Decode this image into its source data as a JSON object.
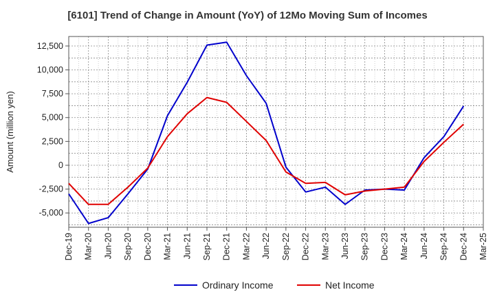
{
  "chart_data": {
    "type": "line",
    "title": "[6101]  Trend of Change in Amount (YoY) of 12Mo Moving Sum of Incomes",
    "ylabel": "Amount (million yen)",
    "xlabel": "",
    "ylim": [
      -6500,
      13500
    ],
    "yticks": [
      -5000,
      -2500,
      0,
      2500,
      5000,
      7500,
      10000,
      12500
    ],
    "ytick_labels": [
      "-5,000",
      "-2,500",
      "0",
      "2,500",
      "5,000",
      "7,500",
      "10,000",
      "12,500"
    ],
    "categories": [
      "Dec-19",
      "Mar-20",
      "Jun-20",
      "Sep-20",
      "Dec-20",
      "Mar-21",
      "Jun-21",
      "Sep-21",
      "Dec-21",
      "Mar-22",
      "Jun-22",
      "Sep-22",
      "Dec-22",
      "Mar-23",
      "Jun-23",
      "Sep-23",
      "Dec-23",
      "Mar-24",
      "Jun-24",
      "Sep-24",
      "Dec-24",
      "Mar-25"
    ],
    "grid": true,
    "legend": "bottom",
    "series": [
      {
        "name": "Ordinary Income",
        "color": "#0000cc",
        "values": [
          -3000,
          -6100,
          -5500,
          -3000,
          -400,
          5200,
          8700,
          12600,
          12900,
          9400,
          6500,
          -200,
          -2800,
          -2300,
          -4100,
          -2600,
          -2500,
          -2600,
          800,
          3000,
          6200,
          null
        ]
      },
      {
        "name": "Net Income",
        "color": "#e00000",
        "values": [
          -1900,
          -4100,
          -4100,
          -2300,
          -300,
          3000,
          5400,
          7100,
          6600,
          4600,
          2600,
          -700,
          -1900,
          -1800,
          -3100,
          -2700,
          -2500,
          -2300,
          400,
          2400,
          4300,
          null
        ]
      }
    ]
  }
}
